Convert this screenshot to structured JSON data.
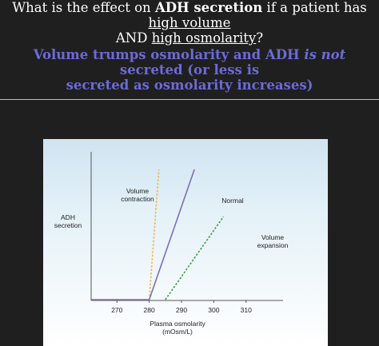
{
  "question": {
    "part1": "What is the effect on ",
    "bold": "ADH secretion",
    "part2": " if a patient has ",
    "underline1": "high volume",
    "line2_prefix": "AND ",
    "underline2": "high osmolarity",
    "end": "?"
  },
  "answer": {
    "part1": "Volume trumps osmolarity and ADH ",
    "italic": "is not",
    "part2": " secreted (or less is",
    "line2": "secreted as osmolarity increases)"
  },
  "colors": {
    "background": "#1f1f1f",
    "answer_text": "#6b6bd8",
    "normal_line": "#7b6fb4",
    "contraction_line": "#f0b44a",
    "expansion_line": "#3f9a46"
  },
  "chart_data": {
    "type": "line",
    "ylabel": [
      "ADH",
      "secretion"
    ],
    "xlabel": [
      "Plasma osmolarity",
      "(mOsm/L)"
    ],
    "xticks": [
      270,
      280,
      290,
      300,
      310
    ],
    "xlim": [
      262,
      318
    ],
    "ylim": [
      0,
      10
    ],
    "baseline": {
      "x_start": 262,
      "x_end": 280,
      "y": 0
    },
    "series": [
      {
        "name": "Volume\ncontraction",
        "label_lines": [
          "Volume",
          "contraction"
        ],
        "style": "dashed",
        "color": "#f0b44a",
        "x": [
          280,
          283
        ],
        "y": [
          0,
          10
        ]
      },
      {
        "name": "Normal",
        "label_lines": [
          "Normal"
        ],
        "style": "solid",
        "color": "#7b6fb4",
        "x": [
          280,
          294
        ],
        "y": [
          0,
          10
        ]
      },
      {
        "name": "Volume\nexpansion",
        "label_lines": [
          "Volume",
          "expansion"
        ],
        "style": "dashed",
        "color": "#3f9a46",
        "x": [
          285,
          303
        ],
        "y": [
          0,
          6.4
        ]
      }
    ]
  }
}
